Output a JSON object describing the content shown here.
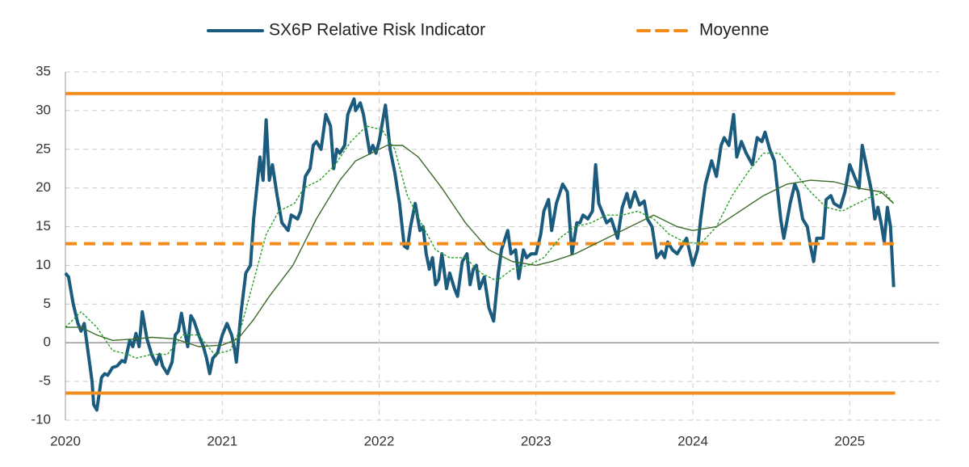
{
  "chart_data": {
    "type": "line",
    "xlim": [
      2020,
      2025.57
    ],
    "xticks": [
      2020,
      2021,
      2022,
      2023,
      2024,
      2025
    ],
    "ylim": [
      -10,
      35
    ],
    "yticks": [
      -10,
      -5,
      0,
      5,
      10,
      15,
      20,
      25,
      30,
      35
    ],
    "grid": true,
    "legend": "top",
    "series": [
      {
        "name": "SX6P Relative Risk Indicator",
        "color": "#1b5c7e",
        "width": 4,
        "style": "solid",
        "x": [
          2020.0,
          2020.02,
          2020.05,
          2020.08,
          2020.1,
          2020.12,
          2020.15,
          2020.17,
          2020.18,
          2020.2,
          2020.23,
          2020.25,
          2020.27,
          2020.3,
          2020.33,
          2020.36,
          2020.38,
          2020.41,
          2020.43,
          2020.45,
          2020.47,
          2020.49,
          2020.52,
          2020.55,
          2020.58,
          2020.6,
          2020.62,
          2020.65,
          2020.68,
          2020.7,
          2020.72,
          2020.74,
          2020.76,
          2020.78,
          2020.8,
          2020.82,
          2020.85,
          2020.88,
          2020.9,
          2020.92,
          2020.94,
          2020.97,
          2021.0,
          2021.03,
          2021.06,
          2021.08,
          2021.09,
          2021.12,
          2021.15,
          2021.18,
          2021.2,
          2021.24,
          2021.26,
          2021.28,
          2021.3,
          2021.32,
          2021.35,
          2021.38,
          2021.42,
          2021.44,
          2021.48,
          2021.5,
          2021.53,
          2021.56,
          2021.58,
          2021.6,
          2021.63,
          2021.66,
          2021.69,
          2021.71,
          2021.73,
          2021.75,
          2021.78,
          2021.8,
          2021.82,
          2021.84,
          2021.85,
          2021.88,
          2021.9,
          2021.92,
          2021.94,
          2021.96,
          2021.98,
          2022.0,
          2022.04,
          2022.07,
          2022.1,
          2022.13,
          2022.16,
          2022.18,
          2022.2,
          2022.23,
          2022.26,
          2022.28,
          2022.3,
          2022.32,
          2022.34,
          2022.36,
          2022.38,
          2022.4,
          2022.43,
          2022.45,
          2022.48,
          2022.5,
          2022.53,
          2022.56,
          2022.58,
          2022.6,
          2022.62,
          2022.64,
          2022.67,
          2022.7,
          2022.73,
          2022.76,
          2022.78,
          2022.82,
          2022.84,
          2022.87,
          2022.89,
          2022.92,
          2022.94,
          2022.97,
          2023.0,
          2023.03,
          2023.05,
          2023.08,
          2023.1,
          2023.13,
          2023.17,
          2023.2,
          2023.23,
          2023.26,
          2023.28,
          2023.3,
          2023.33,
          2023.36,
          2023.38,
          2023.4,
          2023.42,
          2023.45,
          2023.48,
          2023.52,
          2023.55,
          2023.58,
          2023.6,
          2023.63,
          2023.66,
          2023.69,
          2023.71,
          2023.74,
          2023.77,
          2023.8,
          2023.82,
          2023.84,
          2023.87,
          2023.9,
          2023.93,
          2023.96,
          2024.0,
          2024.03,
          2024.05,
          2024.08,
          2024.12,
          2024.15,
          2024.18,
          2024.2,
          2024.23,
          2024.26,
          2024.28,
          2024.31,
          2024.34,
          2024.38,
          2024.41,
          2024.44,
          2024.46,
          2024.49,
          2024.52,
          2024.56,
          2024.58,
          2024.62,
          2024.65,
          2024.67,
          2024.7,
          2024.73,
          2024.75,
          2024.77,
          2024.79,
          2024.83,
          2024.85,
          2024.88,
          2024.9,
          2024.94,
          2024.97,
          2025.0,
          2025.03,
          2025.06,
          2025.08,
          2025.11,
          2025.14,
          2025.16,
          2025.18,
          2025.2,
          2025.22,
          2025.24,
          2025.26,
          2025.28
        ],
        "values": [
          9,
          8.5,
          5,
          2.5,
          1.5,
          2.5,
          -2,
          -5,
          -8,
          -8.7,
          -4.5,
          -4,
          -4.2,
          -3.2,
          -3,
          -2.3,
          -2.5,
          0.3,
          -0.5,
          1.2,
          -0.5,
          4,
          0.5,
          -1.5,
          -2.8,
          -1.5,
          -3,
          -4,
          -2.5,
          1,
          1.5,
          3.8,
          1.5,
          -0.5,
          3.5,
          2.8,
          1,
          -0.5,
          -2,
          -4,
          -2,
          -1.3,
          1,
          2.5,
          1,
          -1,
          -2.5,
          4,
          9,
          10,
          16,
          24,
          21,
          28.8,
          21,
          23,
          19,
          15.5,
          14.5,
          16.5,
          16,
          17,
          21.5,
          22.5,
          25.5,
          26,
          25,
          29.5,
          28,
          22.5,
          25,
          24.5,
          25.5,
          29.5,
          30.5,
          31.5,
          30,
          31,
          29.5,
          27,
          24.5,
          25.5,
          24.5,
          26,
          30.7,
          25,
          22,
          18,
          12.5,
          12.2,
          15,
          18,
          14.5,
          15,
          11.5,
          9.5,
          11,
          7.5,
          8.2,
          11.5,
          7,
          9,
          7,
          6,
          10.5,
          11.5,
          7.5,
          9.5,
          10,
          7,
          8.5,
          4.5,
          2.8,
          9,
          12,
          14.5,
          11.5,
          12,
          8.3,
          12,
          11,
          11.5,
          11.5,
          14,
          17,
          18.5,
          14.5,
          18,
          20.5,
          19.5,
          11.5,
          15.5,
          15.5,
          16.5,
          16,
          17,
          23,
          18,
          17,
          15.5,
          16,
          13.5,
          17.5,
          19.3,
          17.5,
          19.5,
          17.8,
          18.3,
          16,
          15,
          11,
          11.8,
          11,
          13,
          12,
          11.5,
          12.5,
          13.5,
          10,
          12,
          16,
          20.5,
          23.5,
          21.5,
          25.5,
          26.5,
          25.5,
          29.5,
          24,
          26,
          24.5,
          23,
          26.5,
          26,
          27.2,
          25,
          23.5,
          16,
          13.5,
          18,
          20.5,
          19.5,
          16,
          15,
          12.5,
          10.5,
          13.5,
          13.5,
          18.5,
          19,
          18,
          17.5,
          19.5,
          23,
          21.5,
          20,
          25.5,
          22.5,
          19.5,
          16,
          17.5,
          15.5,
          13,
          17.5,
          15,
          7.2
        ]
      },
      {
        "name": "Moyenne",
        "color": "#f28c1a",
        "width": 4,
        "style": "dashed",
        "x": [
          2020,
          2025.29
        ],
        "values": [
          12.8,
          12.8
        ]
      },
      {
        "color": "#f28c1a",
        "width": 4,
        "style": "solid",
        "x": [
          2020,
          2025.29
        ],
        "values": [
          32.2,
          32.2
        ]
      },
      {
        "color": "#f28c1a",
        "width": 4,
        "style": "solid",
        "x": [
          2020,
          2025.29
        ],
        "values": [
          -6.5,
          -6.5
        ]
      },
      {
        "color": "#2aa02a",
        "width": 1.4,
        "style": "dotted",
        "x": [
          2020.0,
          2020.1,
          2020.2,
          2020.3,
          2020.4,
          2020.45,
          2020.55,
          2020.65,
          2020.75,
          2020.85,
          2020.95,
          2021.05,
          2021.12,
          2021.2,
          2021.28,
          2021.36,
          2021.46,
          2021.52,
          2021.62,
          2021.72,
          2021.82,
          2021.92,
          2022.02,
          2022.1,
          2022.18,
          2022.28,
          2022.36,
          2022.45,
          2022.55,
          2022.65,
          2022.75,
          2022.85,
          2022.95,
          2023.05,
          2023.15,
          2023.25,
          2023.35,
          2023.45,
          2023.55,
          2023.65,
          2023.75,
          2023.85,
          2023.95,
          2024.05,
          2024.15,
          2024.25,
          2024.35,
          2024.45,
          2024.55,
          2024.65,
          2024.75,
          2024.85,
          2024.95,
          2025.05,
          2025.15,
          2025.22,
          2025.28
        ],
        "values": [
          2,
          4,
          2,
          -1,
          -1.5,
          -2,
          -1.5,
          -1.5,
          1,
          1,
          -1.5,
          -1,
          2,
          8,
          14,
          17,
          18,
          20,
          21,
          23,
          26,
          28,
          27.5,
          25,
          19,
          15,
          12,
          11,
          11,
          9,
          8,
          9.5,
          10,
          11,
          13.5,
          15,
          15.5,
          16.5,
          16.5,
          17,
          16,
          14,
          13,
          12.8,
          15,
          19,
          22,
          24.5,
          24.5,
          22,
          19.5,
          17.5,
          17,
          18,
          19,
          19.5,
          18
        ]
      },
      {
        "color": "#3d6b2a",
        "width": 1.4,
        "style": "solid",
        "x": [
          2020.0,
          2020.1,
          2020.2,
          2020.3,
          2020.45,
          2020.55,
          2020.7,
          2020.85,
          2021.0,
          2021.1,
          2021.2,
          2021.3,
          2021.45,
          2021.6,
          2021.75,
          2021.85,
          2021.95,
          2022.05,
          2022.15,
          2022.25,
          2022.4,
          2022.55,
          2022.7,
          2022.85,
          2023.0,
          2023.1,
          2023.25,
          2023.45,
          2023.6,
          2023.75,
          2023.9,
          2024.0,
          2024.15,
          2024.3,
          2024.45,
          2024.6,
          2024.75,
          2024.9,
          2025.05,
          2025.2,
          2025.28
        ],
        "values": [
          2,
          2,
          1,
          0.3,
          0.5,
          0.7,
          0.5,
          -0.5,
          -0.3,
          0.5,
          3,
          6,
          10,
          16,
          21,
          23.5,
          24.5,
          25.5,
          25.5,
          24,
          20,
          15.5,
          12,
          10.5,
          10,
          10.5,
          11.5,
          13.5,
          15,
          16.5,
          15,
          14.5,
          15,
          17,
          19,
          20.5,
          21,
          20.8,
          20,
          19.5,
          18
        ]
      }
    ]
  }
}
